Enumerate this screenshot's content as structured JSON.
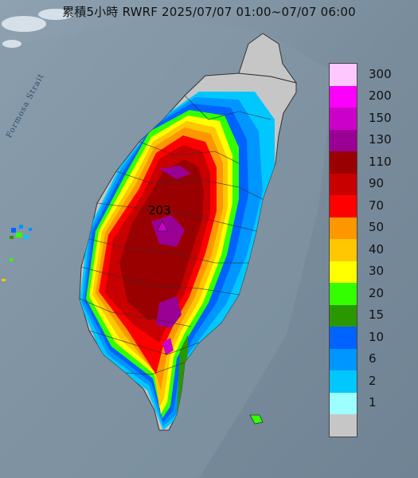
{
  "title": "累積5小時 RWRF 2025/07/07 01:00~07/07 06:00",
  "strait_label": "Formosa Strait",
  "max_value_label": "203",
  "legend": [
    {
      "label": "300",
      "color": "#fec8fe"
    },
    {
      "label": "200",
      "color": "#fb00fb"
    },
    {
      "label": "150",
      "color": "#cb00c9"
    },
    {
      "label": "130",
      "color": "#9a0094"
    },
    {
      "label": "110",
      "color": "#9a0000"
    },
    {
      "label": "90",
      "color": "#c80000"
    },
    {
      "label": "70",
      "color": "#ff0000"
    },
    {
      "label": "50",
      "color": "#fd9700"
    },
    {
      "label": "40",
      "color": "#ffc700"
    },
    {
      "label": "30",
      "color": "#ffff00"
    },
    {
      "label": "20",
      "color": "#33ff00"
    },
    {
      "label": "15",
      "color": "#2b9700"
    },
    {
      "label": "10",
      "color": "#0063ff"
    },
    {
      "label": "6",
      "color": "#0096ff"
    },
    {
      "label": "2",
      "color": "#00c8ff"
    },
    {
      "label": "1",
      "color": "#9dffff"
    },
    {
      "label": "",
      "color": "#c6c6c6"
    }
  ]
}
